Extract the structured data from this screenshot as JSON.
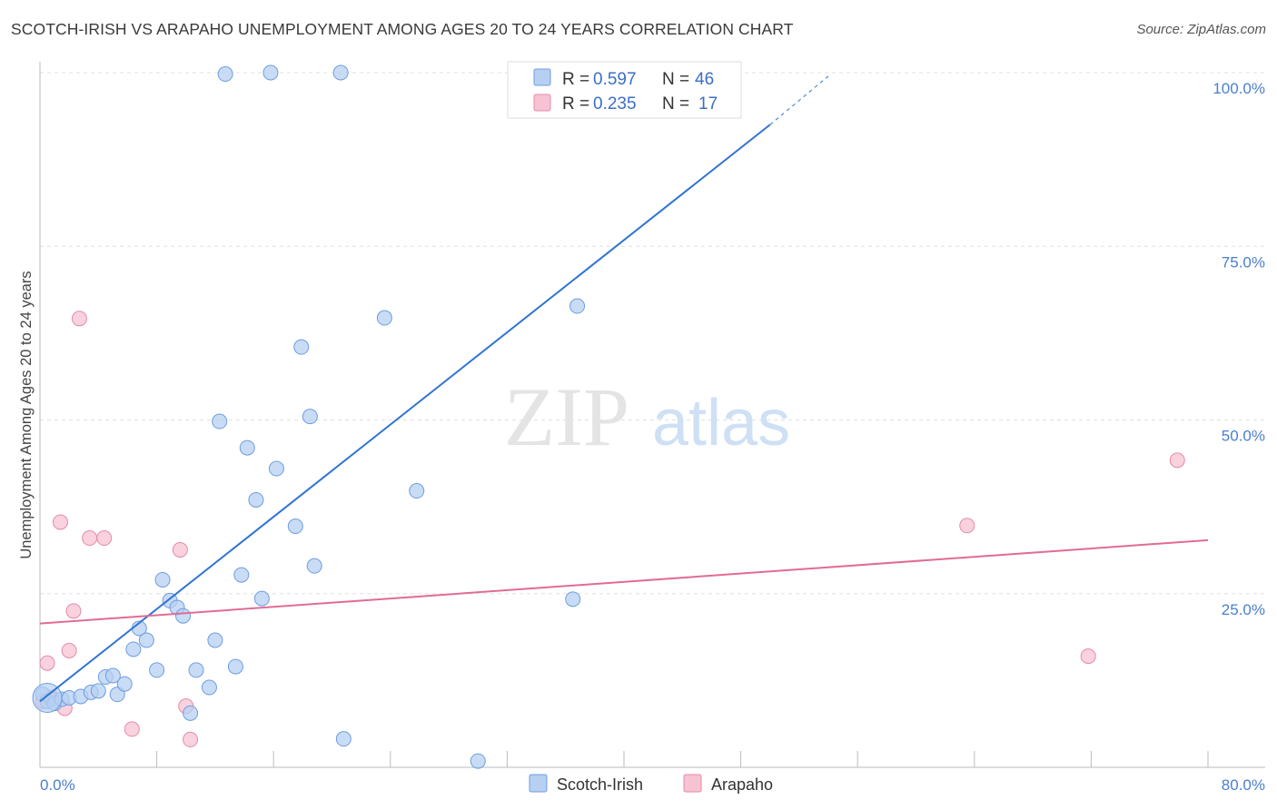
{
  "header": {
    "title": "SCOTCH-IRISH VS ARAPAHO UNEMPLOYMENT AMONG AGES 20 TO 24 YEARS CORRELATION CHART",
    "source": "Source: ZipAtlas.com"
  },
  "watermark": {
    "zip": "ZIP",
    "atlas": "atlas"
  },
  "legend": {
    "series": [
      {
        "r_label": "R =",
        "r_value": "0.597",
        "n_label": "N =",
        "n_value": "46"
      },
      {
        "r_label": "R =",
        "r_value": "0.235",
        "n_label": "N =",
        "n_value": "17"
      }
    ]
  },
  "colors": {
    "scotch_fill": "#b7d0f2",
    "scotch_stroke": "#6d9de0",
    "scotch_line": "#2f74d0",
    "arapaho_fill": "#f7c3d3",
    "arapaho_stroke": "#e58aa8",
    "arapaho_line": "#e06c94",
    "tick_text": "#4a7fcf",
    "grid": "#e0e0e0"
  },
  "chart_data": {
    "type": "scatter",
    "title": "SCOTCH-IRISH VS ARAPAHO UNEMPLOYMENT AMONG AGES 20 TO 24 YEARS CORRELATION CHART",
    "xlabel": "",
    "ylabel": "Unemployment Among Ages 20 to 24 years",
    "xlim": [
      0,
      80
    ],
    "ylim": [
      0,
      100
    ],
    "x_tick_labels": [
      "0.0%",
      "80.0%"
    ],
    "y_ticks": [
      25,
      50,
      75,
      100
    ],
    "y_tick_labels": [
      "25.0%",
      "50.0%",
      "75.0%",
      "100.0%"
    ],
    "grid": true,
    "legend_position": "top-center",
    "series": [
      {
        "name": "Scotch-Irish",
        "r": 0.597,
        "n": 46,
        "trend": {
          "x": [
            0,
            50,
            54
          ],
          "y": [
            9.5,
            92.5,
            99.5
          ]
        },
        "points": [
          [
            0.2,
            10.5
          ],
          [
            0.5,
            9.5
          ],
          [
            0.8,
            9.8
          ],
          [
            1.0,
            9.2
          ],
          [
            1.5,
            9.8
          ],
          [
            2.0,
            10.0
          ],
          [
            2.8,
            10.2
          ],
          [
            3.5,
            10.8
          ],
          [
            4.0,
            11.0
          ],
          [
            4.5,
            13.0
          ],
          [
            5.0,
            13.2
          ],
          [
            5.3,
            10.5
          ],
          [
            5.8,
            12.0
          ],
          [
            6.4,
            17.0
          ],
          [
            6.8,
            20.0
          ],
          [
            7.3,
            18.3
          ],
          [
            8.0,
            14.0
          ],
          [
            8.4,
            27.0
          ],
          [
            8.9,
            24.0
          ],
          [
            9.4,
            23.0
          ],
          [
            9.8,
            21.8
          ],
          [
            10.3,
            7.8
          ],
          [
            10.7,
            14.0
          ],
          [
            11.6,
            11.5
          ],
          [
            12.0,
            18.3
          ],
          [
            12.3,
            49.8
          ],
          [
            12.7,
            99.8
          ],
          [
            13.4,
            14.5
          ],
          [
            13.8,
            27.7
          ],
          [
            14.2,
            46.0
          ],
          [
            14.8,
            38.5
          ],
          [
            15.2,
            24.3
          ],
          [
            15.8,
            100.0
          ],
          [
            16.2,
            43.0
          ],
          [
            17.5,
            34.7
          ],
          [
            17.9,
            60.5
          ],
          [
            18.5,
            50.5
          ],
          [
            18.8,
            29.0
          ],
          [
            20.6,
            100.0
          ],
          [
            20.8,
            4.1
          ],
          [
            23.6,
            64.7
          ],
          [
            25.8,
            39.8
          ],
          [
            30.0,
            0.9
          ],
          [
            36.5,
            24.2
          ],
          [
            36.8,
            66.4
          ],
          [
            44.6,
            100.0
          ]
        ]
      },
      {
        "name": "Arapaho",
        "r": 0.235,
        "n": 17,
        "trend": {
          "x": [
            0,
            80
          ],
          "y": [
            20.7,
            32.7
          ]
        },
        "points": [
          [
            0.2,
            9.5
          ],
          [
            0.5,
            15.0
          ],
          [
            1.4,
            35.3
          ],
          [
            1.7,
            8.5
          ],
          [
            2.0,
            16.8
          ],
          [
            2.3,
            22.5
          ],
          [
            2.7,
            64.6
          ],
          [
            3.4,
            33.0
          ],
          [
            4.4,
            33.0
          ],
          [
            6.3,
            5.5
          ],
          [
            9.6,
            31.3
          ],
          [
            10.0,
            8.8
          ],
          [
            10.3,
            4.0
          ],
          [
            63.5,
            34.8
          ],
          [
            71.8,
            16.0
          ],
          [
            77.9,
            44.2
          ],
          [
            0.8,
            10.0
          ]
        ]
      }
    ]
  }
}
